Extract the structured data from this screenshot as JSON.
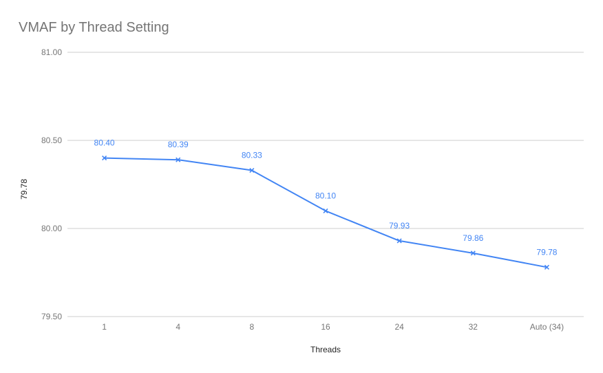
{
  "chart_data": {
    "type": "line",
    "title": "VMAF by Thread Setting",
    "xlabel": "Threads",
    "ylabel": "79.78",
    "categories": [
      "1",
      "4",
      "8",
      "16",
      "24",
      "32",
      "Auto (34)"
    ],
    "series": [
      {
        "values": [
          80.4,
          80.39,
          80.33,
          80.1,
          79.93,
          79.86,
          79.78
        ],
        "labels": [
          "80.40",
          "80.39",
          "80.33",
          "80.10",
          "79.93",
          "79.86",
          "79.78"
        ]
      }
    ],
    "ylim": [
      79.5,
      81.0
    ],
    "yticks": [
      79.5,
      80.0,
      80.5,
      81.0
    ],
    "ytick_labels": [
      "79.50",
      "80.00",
      "80.50",
      "81.00"
    ],
    "grid": true,
    "legend": "none",
    "marker": "x",
    "colors": {
      "series": "#4285f4",
      "title": "#757575",
      "grid": "#cccccc"
    }
  }
}
